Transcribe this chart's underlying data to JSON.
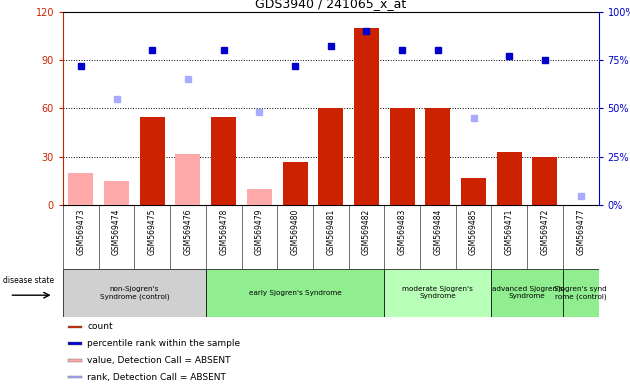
{
  "title": "GDS3940 / 241065_x_at",
  "samples": [
    "GSM569473",
    "GSM569474",
    "GSM569475",
    "GSM569476",
    "GSM569478",
    "GSM569479",
    "GSM569480",
    "GSM569481",
    "GSM569482",
    "GSM569483",
    "GSM569484",
    "GSM569485",
    "GSM569471",
    "GSM569472",
    "GSM569477"
  ],
  "count_bars": [
    0,
    0,
    55,
    0,
    55,
    0,
    27,
    60,
    110,
    60,
    60,
    17,
    33,
    30,
    0
  ],
  "count_absent_bars": [
    20,
    15,
    0,
    32,
    0,
    10,
    0,
    0,
    0,
    0,
    0,
    0,
    0,
    0,
    0
  ],
  "rank_blue": [
    72,
    0,
    80,
    0,
    80,
    0,
    72,
    82,
    90,
    80,
    80,
    0,
    77,
    75,
    0
  ],
  "rank_absent_blue": [
    0,
    55,
    0,
    65,
    0,
    48,
    0,
    0,
    0,
    0,
    0,
    45,
    0,
    0,
    5
  ],
  "ylim_left": [
    0,
    120
  ],
  "ylim_right": [
    0,
    100
  ],
  "yticks_left": [
    0,
    30,
    60,
    90,
    120
  ],
  "yticks_right": [
    0,
    25,
    50,
    75,
    100
  ],
  "ytick_labels_left": [
    "0",
    "30",
    "60",
    "90",
    "120"
  ],
  "ytick_labels_right": [
    "0%",
    "25%",
    "50%",
    "75%",
    "100%"
  ],
  "groups": [
    {
      "label": "non-Sjogren's\nSyndrome (control)",
      "indices": [
        0,
        1,
        2,
        3
      ],
      "color": "#d0d0d0"
    },
    {
      "label": "early Sjogren's Syndrome",
      "indices": [
        4,
        5,
        6,
        7,
        8
      ],
      "color": "#90ee90"
    },
    {
      "label": "moderate Sjogren's\nSyndrome",
      "indices": [
        9,
        10,
        11
      ],
      "color": "#b8ffb8"
    },
    {
      "label": "advanced Sjogren's\nSyndrome",
      "indices": [
        12,
        13
      ],
      "color": "#90ee90"
    },
    {
      "label": "Sjogren's synd\nrome (control)",
      "indices": [
        14
      ],
      "color": "#90ee90"
    }
  ],
  "bar_color_red": "#cc2200",
  "bar_color_pink": "#ffaaaa",
  "dot_color_blue": "#0000cc",
  "dot_color_lightblue": "#aaaaff",
  "bg_plot": "#ffffff",
  "disease_state_label": "disease state",
  "legend_items": [
    {
      "color": "#cc2200",
      "label": "count"
    },
    {
      "color": "#0000cc",
      "label": "percentile rank within the sample"
    },
    {
      "color": "#ffaaaa",
      "label": "value, Detection Call = ABSENT"
    },
    {
      "color": "#aaaaff",
      "label": "rank, Detection Call = ABSENT"
    }
  ]
}
